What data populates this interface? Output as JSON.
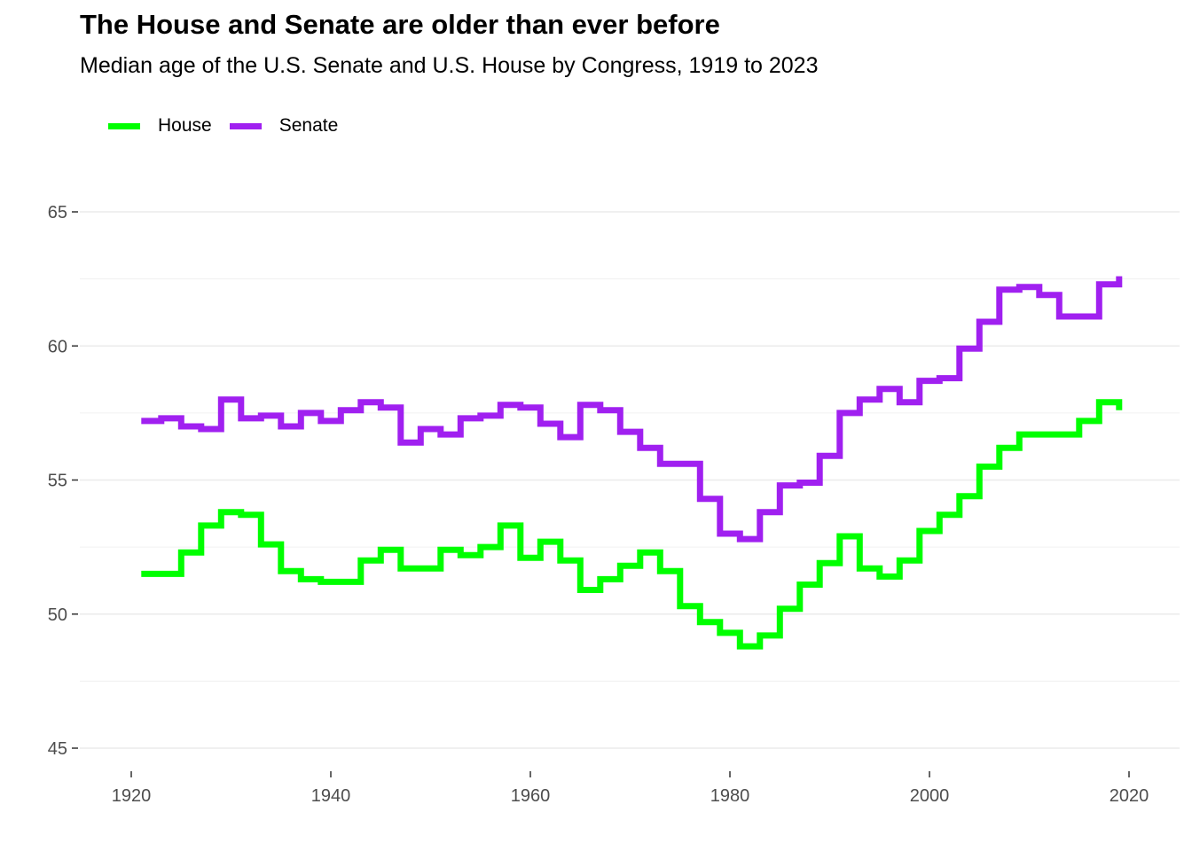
{
  "chart_data": {
    "type": "line",
    "step": true,
    "title": "The House and Senate are older than ever before",
    "subtitle": "Median age of the U.S. Senate and U.S. House by Congress, 1919 to 2023",
    "xlabel": "",
    "ylabel": "",
    "xlim": [
      1917,
      2023
    ],
    "ylim": [
      45,
      65
    ],
    "x_ticks": [
      1920,
      1940,
      1960,
      1980,
      2000,
      2020
    ],
    "y_ticks": [
      45,
      50,
      55,
      60,
      65
    ],
    "grid": true,
    "legend_position": "top-left",
    "series": [
      {
        "name": "House",
        "color": "#00ff00",
        "x": [
          1921,
          1923,
          1925,
          1927,
          1929,
          1931,
          1933,
          1935,
          1937,
          1939,
          1941,
          1943,
          1945,
          1947,
          1949,
          1951,
          1953,
          1955,
          1957,
          1959,
          1961,
          1963,
          1965,
          1967,
          1969,
          1971,
          1973,
          1975,
          1977,
          1979,
          1981,
          1983,
          1985,
          1987,
          1989,
          1991,
          1993,
          1995,
          1997,
          1999,
          2001,
          2003,
          2005,
          2007,
          2009,
          2011,
          2013,
          2015,
          2017,
          2019
        ],
        "values": [
          51.5,
          51.5,
          52.3,
          53.3,
          53.8,
          53.7,
          52.6,
          51.6,
          51.3,
          51.2,
          51.2,
          52.0,
          52.4,
          51.7,
          51.7,
          52.4,
          52.2,
          52.5,
          53.3,
          52.1,
          52.7,
          52.0,
          50.9,
          51.3,
          51.8,
          52.3,
          51.6,
          50.3,
          49.7,
          49.3,
          48.8,
          49.2,
          50.2,
          51.1,
          51.9,
          52.9,
          51.7,
          51.4,
          52.0,
          53.1,
          53.7,
          54.4,
          55.5,
          56.2,
          56.7,
          56.7,
          56.7,
          57.2,
          57.9,
          57.6
        ]
      },
      {
        "name": "Senate",
        "color": "#a020f0",
        "x": [
          1921,
          1923,
          1925,
          1927,
          1929,
          1931,
          1933,
          1935,
          1937,
          1939,
          1941,
          1943,
          1945,
          1947,
          1949,
          1951,
          1953,
          1955,
          1957,
          1959,
          1961,
          1963,
          1965,
          1967,
          1969,
          1971,
          1973,
          1975,
          1977,
          1979,
          1981,
          1983,
          1985,
          1987,
          1989,
          1991,
          1993,
          1995,
          1997,
          1999,
          2001,
          2003,
          2005,
          2007,
          2009,
          2011,
          2013,
          2015,
          2017,
          2019
        ],
        "values": [
          57.2,
          57.3,
          57.0,
          56.9,
          58.0,
          57.3,
          57.4,
          57.0,
          57.5,
          57.2,
          57.6,
          57.9,
          57.7,
          56.4,
          56.9,
          56.7,
          57.3,
          57.4,
          57.8,
          57.7,
          57.1,
          56.6,
          57.8,
          57.6,
          56.8,
          56.2,
          55.6,
          55.6,
          54.3,
          53.0,
          52.8,
          53.8,
          54.8,
          54.9,
          55.9,
          57.5,
          58.0,
          58.4,
          57.9,
          58.7,
          58.8,
          59.9,
          60.9,
          62.1,
          62.2,
          61.9,
          61.1,
          61.1,
          62.3,
          62.6
        ]
      }
    ]
  }
}
